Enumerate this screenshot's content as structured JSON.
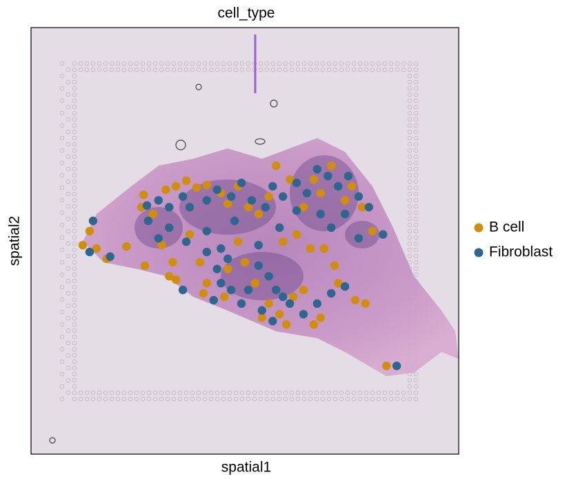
{
  "chart_data": {
    "type": "scatter",
    "title": "cell_type",
    "x_label": "spatial1",
    "y_label": "spatial2",
    "xlim": [
      0,
      100
    ],
    "ylim": [
      100,
      0
    ],
    "legend": "right",
    "series": [
      {
        "name": "B cell",
        "color": "#d18e0d",
        "x": [
          26.3,
          25.8,
          28.5,
          31.5,
          33.9,
          36.3,
          38.7,
          41.1,
          44.4,
          46.0,
          48.4,
          50.8,
          53.2,
          55.6,
          57.3,
          60.5,
          63.7,
          66.1,
          67.7,
          70.2,
          73.4,
          75.0,
          77.4,
          79.8,
          13.7,
          12.1,
          15.3,
          17.7,
          22.3,
          26.6,
          30.6,
          33.1,
          33.9,
          39.5,
          41.1,
          46.0,
          48.4,
          50.0,
          52.4,
          55.6,
          58.1,
          59.7,
          61.3,
          63.7,
          65.3,
          68.5,
          71.0,
          71.8,
          75.8,
          78.2,
          67.7,
          66.1,
          54.0,
          45.2,
          40.3,
          32.3,
          62.1,
          58.9,
          83.1,
          37.1
        ],
        "y": [
          39.2,
          42.1,
          43.7,
          38.0,
          37.2,
          35.9,
          37.5,
          36.9,
          38.8,
          41.3,
          37.2,
          42.1,
          43.7,
          39.6,
          32.4,
          35.6,
          42.1,
          35.6,
          38.8,
          32.4,
          40.5,
          37.2,
          42.1,
          47.7,
          47.7,
          51.0,
          51.8,
          54.2,
          51.3,
          55.8,
          51.0,
          55.0,
          59.1,
          55.0,
          59.9,
          56.6,
          50.2,
          55.0,
          59.9,
          64.7,
          67.2,
          69.6,
          63.1,
          61.5,
          51.8,
          51.8,
          55.8,
          59.9,
          63.9,
          64.7,
          68.0,
          69.6,
          68.0,
          63.1,
          62.3,
          58.3,
          48.5,
          50.2,
          79.3,
          48.5
        ]
      },
      {
        "name": "Fibroblast",
        "color": "#2e6690",
        "x": [
          27.1,
          29.8,
          32.3,
          35.5,
          37.1,
          41.1,
          43.5,
          46.8,
          49.2,
          51.6,
          54.8,
          56.5,
          58.9,
          62.1,
          64.5,
          66.9,
          69.4,
          71.8,
          74.2,
          76.6,
          79.0,
          82.3,
          14.5,
          13.7,
          18.5,
          27.4,
          32.3,
          36.3,
          41.1,
          43.5,
          44.4,
          46.8,
          42.7,
          49.2,
          50.8,
          53.2,
          55.6,
          57.3,
          58.9,
          60.5,
          56.5,
          63.7,
          66.9,
          70.2,
          73.4,
          67.7,
          70.2,
          73.4,
          76.6,
          41.1,
          47.6,
          53.2,
          58.1,
          62.1,
          44.4,
          46.0,
          54.0,
          85.5,
          29.8,
          35.5
        ],
        "y": [
          41.7,
          40.5,
          42.1,
          39.6,
          42.1,
          40.5,
          38.0,
          39.6,
          36.4,
          40.5,
          42.1,
          37.2,
          39.6,
          36.4,
          38.8,
          33.2,
          34.8,
          37.2,
          34.8,
          39.6,
          42.1,
          48.5,
          45.3,
          52.6,
          53.7,
          45.3,
          46.9,
          50.2,
          52.6,
          56.6,
          59.9,
          61.5,
          63.9,
          64.7,
          61.5,
          55.8,
          58.3,
          61.5,
          63.1,
          64.7,
          68.8,
          67.2,
          64.7,
          62.3,
          60.7,
          43.7,
          46.9,
          43.7,
          49.4,
          47.7,
          45.3,
          51.0,
          46.9,
          42.9,
          51.8,
          54.2,
          66.3,
          79.3,
          49.4,
          61.5
        ]
      }
    ]
  }
}
